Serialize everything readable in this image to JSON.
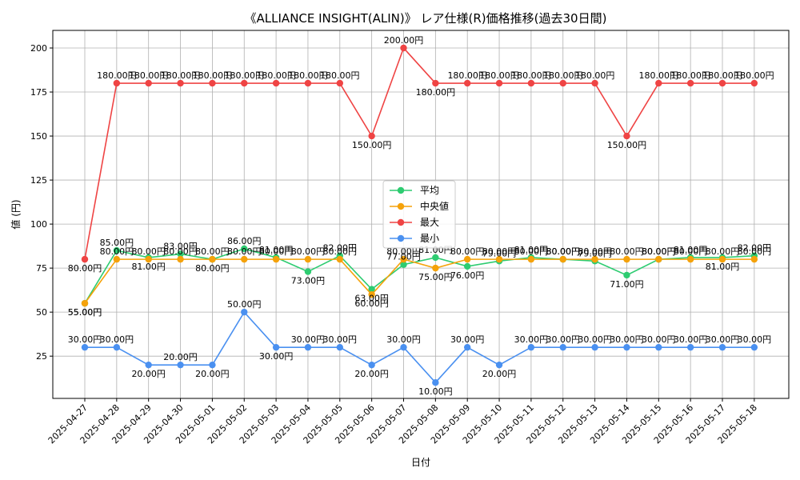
{
  "chart_data": {
    "type": "line",
    "title": "《ALLIANCE INSIGHT(ALIN)》 レア仕様(R)価格推移(過去30日間)",
    "xlabel": "日付",
    "ylabel": "値 (円)",
    "ylim": [
      1,
      210
    ],
    "yticks": [
      25,
      50,
      75,
      100,
      125,
      150,
      175,
      200
    ],
    "grid": true,
    "legend_position": "center",
    "label_suffix": "円",
    "categories": [
      "2025-04-27",
      "2025-04-28",
      "2025-04-29",
      "2025-04-30",
      "2025-05-01",
      "2025-05-02",
      "2025-05-03",
      "2025-05-04",
      "2025-05-05",
      "2025-05-06",
      "2025-05-07",
      "2025-05-08",
      "2025-05-09",
      "2025-05-10",
      "2025-05-11",
      "2025-05-12",
      "2025-05-13",
      "2025-05-14",
      "2025-05-15",
      "2025-05-16",
      "2025-05-17",
      "2025-05-18"
    ],
    "series": [
      {
        "name": "平均",
        "color": "#2ecc71",
        "values": [
          55,
          85,
          81,
          83,
          80,
          86,
          81,
          73,
          82,
          63,
          77,
          81,
          76,
          79,
          81,
          80,
          79,
          71,
          80,
          81,
          81,
          82
        ]
      },
      {
        "name": "中央値",
        "color": "#f5a20a",
        "values": [
          55,
          80,
          80,
          80,
          80,
          80,
          80,
          80,
          80,
          60,
          80,
          75,
          80,
          80,
          80,
          80,
          80,
          80,
          80,
          80,
          80,
          80
        ]
      },
      {
        "name": "最大",
        "color": "#ef4444",
        "values": [
          80,
          180,
          180,
          180,
          180,
          180,
          180,
          180,
          180,
          150,
          200,
          180,
          180,
          180,
          180,
          180,
          180,
          150,
          180,
          180,
          180,
          180
        ]
      },
      {
        "name": "最小",
        "color": "#4a90f0",
        "values": [
          30,
          30,
          20,
          20,
          20,
          50,
          30,
          30,
          30,
          20,
          30,
          10,
          30,
          20,
          30,
          30,
          30,
          30,
          30,
          30,
          30,
          30
        ]
      }
    ]
  }
}
